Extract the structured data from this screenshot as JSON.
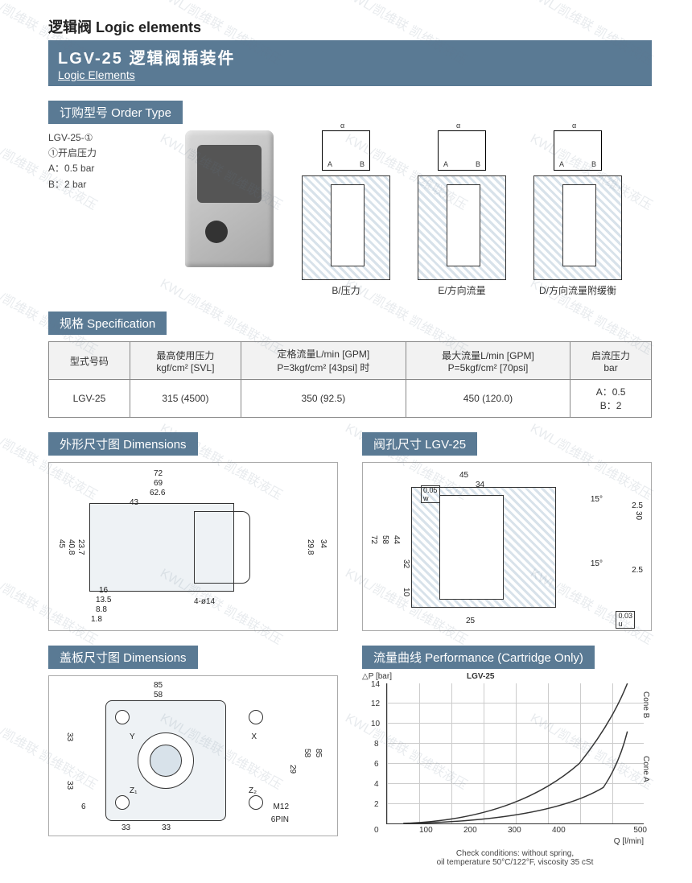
{
  "watermark_text": "KWL/凯维联  凯维联液压",
  "header": {
    "category": "逻辑阀 Logic elements",
    "title_main": "LGV-25 逻辑阀插装件",
    "title_sub": "Logic Elements"
  },
  "order": {
    "heading": "订购型号 Order Type",
    "model": "LGV-25-①",
    "param_label": "①开启压力",
    "options": [
      "A：0.5 bar",
      "B：2 bar"
    ]
  },
  "cross_sections": [
    {
      "label": "B/压力",
      "ports": "A  B  α"
    },
    {
      "label": "E/方向流量",
      "ports": "A  B  α"
    },
    {
      "label": "D/方向流量附缓衡",
      "ports": "A  B  α"
    }
  ],
  "spec": {
    "heading": "规格 Specification",
    "columns": [
      "型式号码",
      "最高使用压力\nkgf/cm² [SVL]",
      "定格流量L/min [GPM]\nP=3kgf/cm² [43psi] 时",
      "最大流量L/min [GPM]\nP=5kgf/cm² [70psi]",
      "启流压力\nbar"
    ],
    "row": {
      "model": "LGV-25",
      "max_pressure": "315 (4500)",
      "rated_flow": "350 (92.5)",
      "max_flow": "450 (120.0)",
      "cracking": "A：0.5\nB：2"
    }
  },
  "dimensions": {
    "outline_heading": "外形尺寸图 Dimensions",
    "cavity_heading": "阀孔尺寸 LGV-25",
    "plate_heading": "盖板尺寸图 Dimensions",
    "outline_dims": {
      "w1": "72",
      "w2": "69",
      "w3": "62.6",
      "w4": "43",
      "h1": "45",
      "h2": "40.8",
      "h3": "23.7",
      "hr1": "29.8",
      "hr2": "34",
      "bot1": "1.8",
      "bot2": "8.8",
      "bot3": "13.5",
      "bot4": "16",
      "holes": "4-ø14"
    },
    "cavity_dims": {
      "w_top": "45",
      "w_mid": "34",
      "h_total": "72",
      "h1": "58",
      "h2": "44",
      "h3": "32",
      "h4": "10",
      "note_w": "0.05",
      "angle": "15°",
      "r1": "2.5",
      "r2": "30",
      "bot": "25",
      "tol": "0.03",
      "u": "u"
    },
    "plate_dims": {
      "w_outer": "85",
      "w_inner": "58",
      "h_outer": "85",
      "h_inner": "58",
      "off1": "33",
      "off2": "33",
      "inner1": "29",
      "holes": "M12",
      "pin": "6PIN",
      "d": "6",
      "labels": [
        "X",
        "Y",
        "Z₁",
        "Z₂"
      ]
    }
  },
  "performance": {
    "heading": "流量曲线 Performance (Cartridge Only)",
    "chart_title": "LGV-25",
    "y_label": "△P [bar]",
    "x_label": "Q [l/min]",
    "y_max": 14,
    "y_ticks": [
      0,
      2,
      4,
      6,
      8,
      10,
      12,
      14
    ],
    "x_ticks": [
      0,
      100,
      200,
      300,
      400,
      500
    ],
    "series": [
      "Cone B",
      "Cone A"
    ],
    "footnote": "Check conditions: without spring,\noil temperature 50°C/122°F, viscosity 35 cSt",
    "colors": {
      "grid": "#cccccc",
      "line": "#333333",
      "bg": "#ffffff"
    }
  }
}
